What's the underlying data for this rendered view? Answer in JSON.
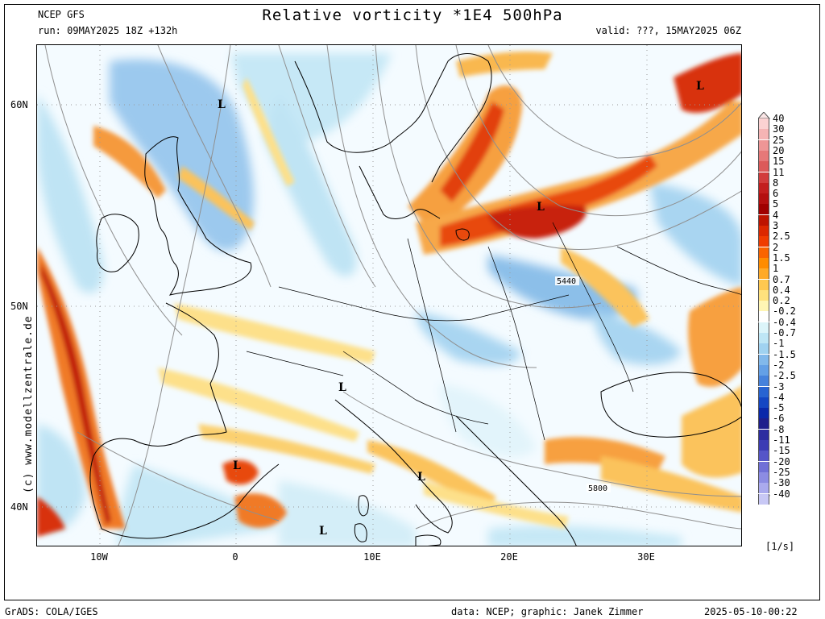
{
  "header": {
    "model": "NCEP GFS",
    "run": "run: 09MAY2025 18Z +132h",
    "title": "Relative vorticity *1E4 500hPa",
    "valid": "valid: ???, 15MAY2025 06Z"
  },
  "axes": {
    "lat_labels": [
      "60N",
      "50N",
      "40N"
    ],
    "lon_labels": [
      "10W",
      "0",
      "10E",
      "20E",
      "30E"
    ]
  },
  "map_labels": {
    "lows": [
      "L",
      "L",
      "L",
      "L",
      "L",
      "L",
      "L"
    ],
    "contours": [
      "5440",
      "5800"
    ]
  },
  "legend": {
    "unit": "[1/s]",
    "levels": [
      {
        "label": "40",
        "color": "#fbd2d2"
      },
      {
        "label": "30",
        "color": "#f5b4b4"
      },
      {
        "label": "25",
        "color": "#ee9696"
      },
      {
        "label": "20",
        "color": "#e67878"
      },
      {
        "label": "15",
        "color": "#dc5a5a"
      },
      {
        "label": "11",
        "color": "#d23c3c"
      },
      {
        "label": "8",
        "color": "#c31e1e"
      },
      {
        "label": "6",
        "color": "#b40f0f"
      },
      {
        "label": "5",
        "color": "#a00000"
      },
      {
        "label": "4",
        "color": "#be1400"
      },
      {
        "label": "3",
        "color": "#dc2800"
      },
      {
        "label": "2.5",
        "color": "#f03c00"
      },
      {
        "label": "2",
        "color": "#fa6400"
      },
      {
        "label": "1.5",
        "color": "#ff8c00"
      },
      {
        "label": "1",
        "color": "#ffaa28"
      },
      {
        "label": "0.7",
        "color": "#ffc850"
      },
      {
        "label": "0.4",
        "color": "#ffe17d"
      },
      {
        "label": "0.2",
        "color": "#fff5b4"
      },
      {
        "label": "-0.2",
        "color": "#ffffff"
      },
      {
        "label": "-0.4",
        "color": "#dcf5fa"
      },
      {
        "label": "-0.7",
        "color": "#bee6f5"
      },
      {
        "label": "-1",
        "color": "#a0d2f0"
      },
      {
        "label": "-1.5",
        "color": "#82b9eb"
      },
      {
        "label": "-2",
        "color": "#64a0e6"
      },
      {
        "label": "-2.5",
        "color": "#4682dc"
      },
      {
        "label": "-3",
        "color": "#2864d2"
      },
      {
        "label": "-4",
        "color": "#1446c3"
      },
      {
        "label": "-5",
        "color": "#0a28aa"
      },
      {
        "label": "-6",
        "color": "#1e1e8c"
      },
      {
        "label": "-8",
        "color": "#2d2da0"
      },
      {
        "label": "-11",
        "color": "#3c3cb4"
      },
      {
        "label": "-15",
        "color": "#5555c8"
      },
      {
        "label": "-20",
        "color": "#7070d7"
      },
      {
        "label": "-25",
        "color": "#8c8ce3"
      },
      {
        "label": "-30",
        "color": "#aaaaee"
      },
      {
        "label": "-40",
        "color": "#c8c8f5"
      }
    ]
  },
  "watermark": "(c)  www.modellzentrale.de",
  "footer": {
    "left": "GrADS: COLA/IGES",
    "credit": "data: NCEP; graphic: Janek Zimmer",
    "timestamp": "2025-05-10-00:22"
  }
}
